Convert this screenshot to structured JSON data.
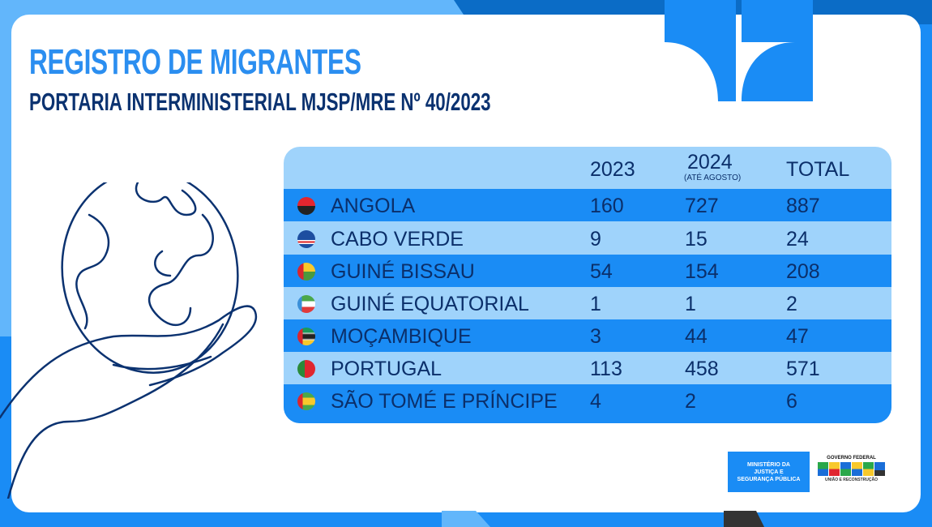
{
  "title": "REGISTRO DE MIGRANTES",
  "subtitle": "PORTARIA INTERMINISTERIAL MJSP/MRE Nº 40/2023",
  "table": {
    "headers": {
      "col_2023": "2023",
      "col_2024": "2024",
      "col_2024_note": "(ATÉ AGOSTO)",
      "col_total": "TOTAL"
    },
    "rows": [
      {
        "country": "ANGOLA",
        "flag": "angola-flag-icon",
        "y2023": "160",
        "y2024": "727",
        "total": "887"
      },
      {
        "country": "CABO VERDE",
        "flag": "cabo-verde-flag-icon",
        "y2023": "9",
        "y2024": "15",
        "total": "24"
      },
      {
        "country": "GUINÉ BISSAU",
        "flag": "guine-bissau-flag-icon",
        "y2023": "54",
        "y2024": "154",
        "total": "208"
      },
      {
        "country": "GUINÉ EQUATORIAL",
        "flag": "guine-equatorial-flag-icon",
        "y2023": "1",
        "y2024": "1",
        "total": "2"
      },
      {
        "country": "MOÇAMBIQUE",
        "flag": "mocambique-flag-icon",
        "y2023": "3",
        "y2024": "44",
        "total": "47"
      },
      {
        "country": "PORTUGAL",
        "flag": "portugal-flag-icon",
        "y2023": "113",
        "y2024": "458",
        "total": "571"
      },
      {
        "country": "SÃO TOMÉ E PRÍNCIPE",
        "flag": "sao-tome-flag-icon",
        "y2023": "4",
        "y2024": "2",
        "total": "6"
      }
    ]
  },
  "footer": {
    "ministry_line1": "MINISTÉRIO DA",
    "ministry_line2": "JUSTIÇA E",
    "ministry_line3": "SEGURANÇA PÚBLICA",
    "gov_top": "GOVERNO FEDERAL",
    "gov_logo": "BRASIL",
    "gov_bottom": "UNIÃO E RECONSTRUÇÃO"
  },
  "colors": {
    "accent": "#1a8cf5",
    "light": "#9fd3fb",
    "navy": "#0b2f6a",
    "title": "#2b8ef0"
  }
}
